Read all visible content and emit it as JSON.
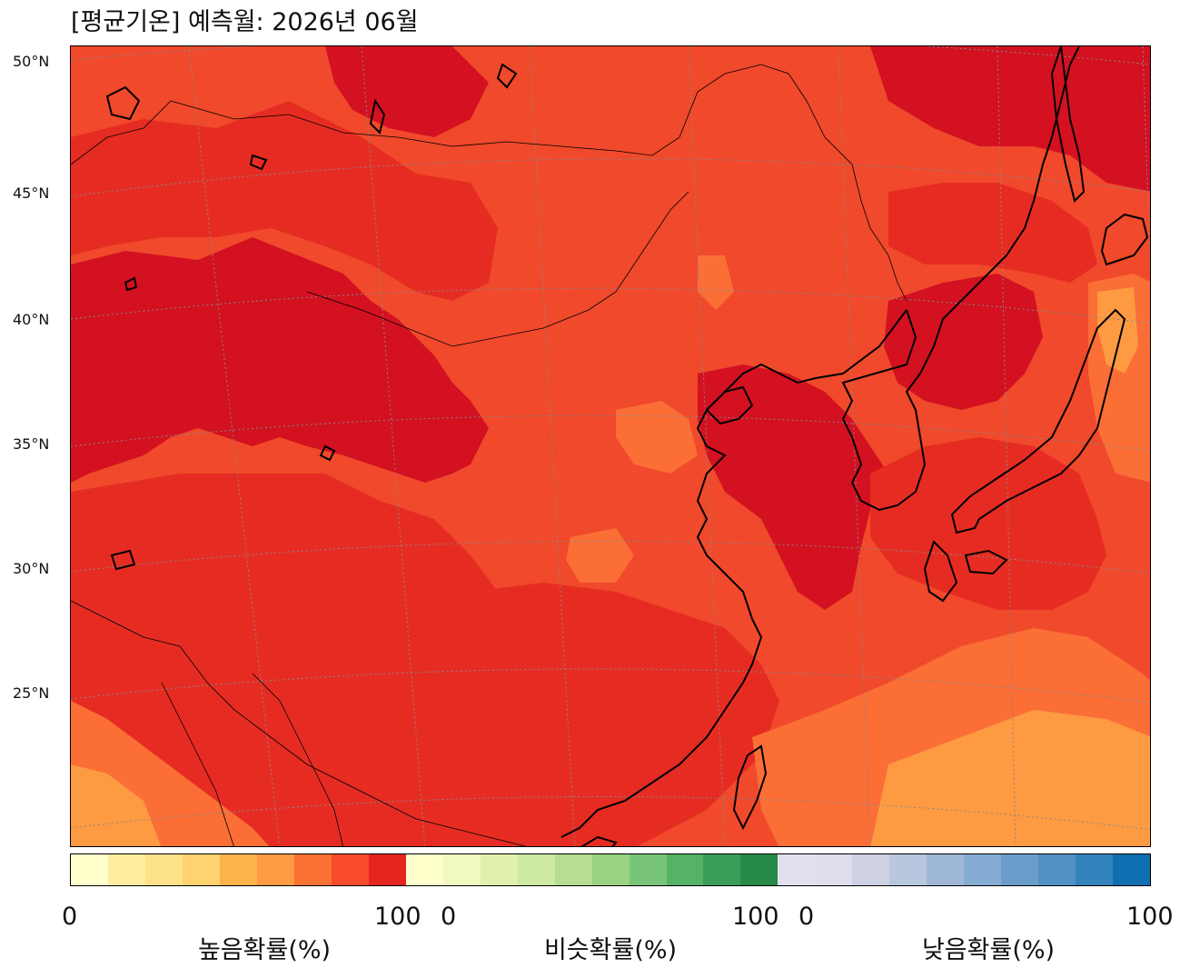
{
  "title": "[평균기온] 예측월: 2026년 06월",
  "map": {
    "latitude_labels": [
      "50°N",
      "45°N",
      "40°N",
      "35°N",
      "30°N",
      "25°N"
    ],
    "background_color": "#f0492b",
    "color_regions": [
      {
        "name": "high-prob-90-100",
        "color": "#d31121"
      },
      {
        "name": "high-prob-80-90",
        "color": "#e62c22"
      },
      {
        "name": "high-prob-70-80",
        "color": "#f0492b"
      },
      {
        "name": "high-prob-60-70",
        "color": "#fb6e36"
      },
      {
        "name": "high-prob-50-60",
        "color": "#fd9a42"
      }
    ],
    "gridline_color": "#888888",
    "coastline_color": "#000000"
  },
  "colorbar": {
    "groups": [
      {
        "label": "높음확률(%)",
        "min_label": "0",
        "max_label": "100",
        "colors": [
          "#ffffcc",
          "#ffeda0",
          "#fee289",
          "#fed26e",
          "#feb24c",
          "#fd9a42",
          "#fc7134",
          "#f94a29",
          "#e4261f"
        ]
      },
      {
        "label": "비슷확률(%)",
        "min_label": "0",
        "max_label": "100",
        "colors": [
          "#ffffcc",
          "#f1f9c1",
          "#e0f1ae",
          "#cde9a2",
          "#b6df93",
          "#9ad381",
          "#78c57a",
          "#55b367",
          "#3b9e58",
          "#278a48"
        ]
      },
      {
        "label": "낮음확률(%)",
        "min_label": "0",
        "max_label": "100",
        "colors": [
          "#e1e1ee",
          "#dedeec",
          "#cfd1e5",
          "#b8c6de",
          "#9eb7d6",
          "#85acd2",
          "#6b9dca",
          "#5291c4",
          "#3384bd",
          "#0f6fb0"
        ]
      }
    ]
  }
}
